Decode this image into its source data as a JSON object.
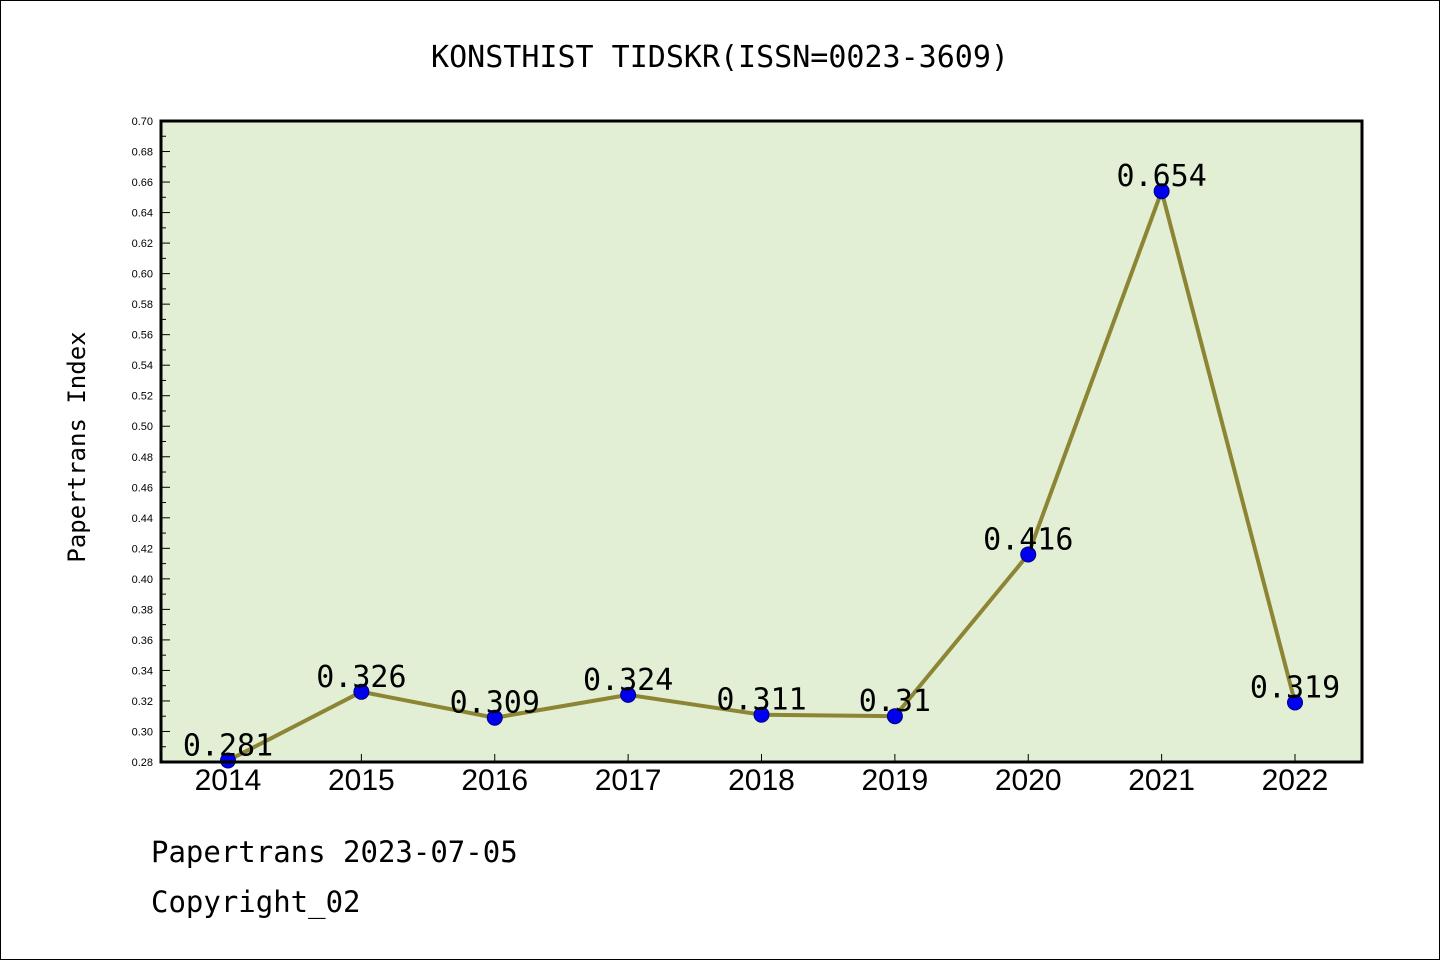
{
  "chart_data": {
    "type": "line",
    "title": "KONSTHIST TIDSKR(ISSN=0023-3609)",
    "xlabel": "",
    "ylabel": "Papertrans Index",
    "categories": [
      "2014",
      "2015",
      "2016",
      "2017",
      "2018",
      "2019",
      "2020",
      "2021",
      "2022"
    ],
    "series": [
      {
        "values": [
          0.281,
          0.326,
          0.309,
          0.324,
          0.311,
          0.31,
          0.416,
          0.654,
          0.319
        ],
        "data_labels": [
          "0.281",
          "0.326",
          "0.309",
          "0.324",
          "0.311",
          "0.31",
          "0.416",
          "0.654",
          "0.319"
        ]
      }
    ],
    "ylim": [
      0.28,
      0.7
    ],
    "y_ticks": [
      "0.28",
      "0.30",
      "0.32",
      "0.34",
      "0.36",
      "0.38",
      "0.40",
      "0.42",
      "0.44",
      "0.46",
      "0.48",
      "0.50",
      "0.52",
      "0.54",
      "0.56",
      "0.58",
      "0.60",
      "0.62",
      "0.64",
      "0.66",
      "0.68",
      "0.70"
    ],
    "grid": false,
    "legend": "none",
    "colors": {
      "plot_background": "#e2efd5",
      "line": "#8c8534",
      "marker": "#0000ee",
      "marker_edge": "#000080"
    }
  },
  "footer": {
    "line1": "Papertrans 2023-07-05",
    "line2": "Copyright_02"
  }
}
